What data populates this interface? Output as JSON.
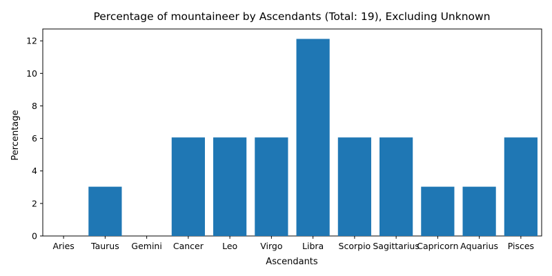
{
  "chart_data": {
    "type": "bar",
    "title": "Percentage of mountaineer by Ascendants (Total: 19), Excluding Unknown",
    "xlabel": "Ascendants",
    "ylabel": "Percentage",
    "categories": [
      "Aries",
      "Taurus",
      "Gemini",
      "Cancer",
      "Leo",
      "Virgo",
      "Libra",
      "Scorpio",
      "Sagittarius",
      "Capricorn",
      "Aquarius",
      "Pisces"
    ],
    "values": [
      0,
      3.03,
      0,
      6.06,
      6.06,
      6.06,
      12.12,
      6.06,
      6.06,
      3.03,
      3.03,
      6.06
    ],
    "ylim": [
      0,
      12.73
    ],
    "yticks": [
      0,
      2,
      4,
      6,
      8,
      10,
      12
    ],
    "bar_color": "#1f77b4",
    "grid": false,
    "legend": "none"
  }
}
